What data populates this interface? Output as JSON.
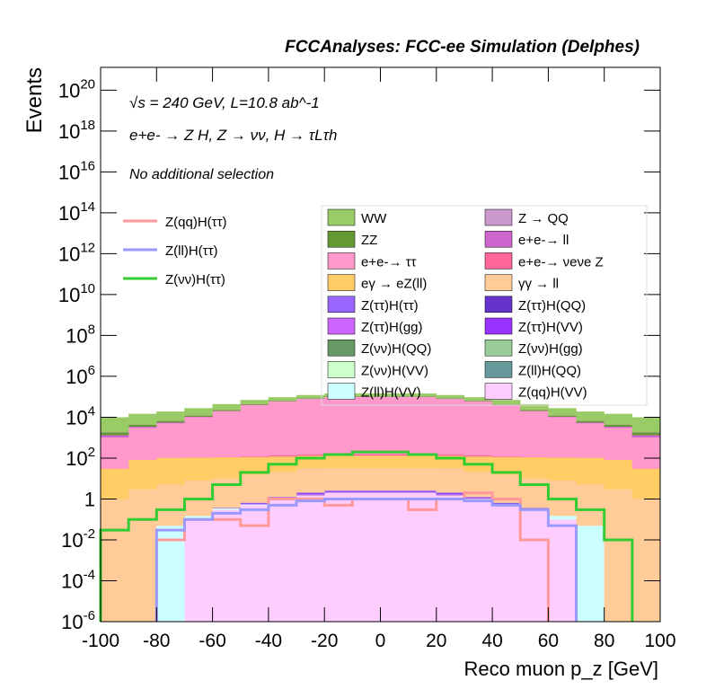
{
  "chart_data": {
    "type": "stacked_histogram",
    "title": "FCCAnalyses: FCC-ee Simulation (Delphes)",
    "ylabel": "Events",
    "xlabel": "Reco muon p_z [GeV]",
    "annotations": [
      "√s = 240 GeV, L=10.8 ab^-1",
      "e+e- → Z H, Z → νν, H → τLτh",
      "No additional selection"
    ],
    "log_y": true,
    "bins": [
      -100,
      -90,
      -80,
      -70,
      -60,
      -50,
      -40,
      -30,
      -20,
      -10,
      0,
      10,
      20,
      30,
      40,
      50,
      60,
      70,
      80,
      90,
      100
    ],
    "xlim": [
      -100,
      100
    ],
    "xticks": [
      -100,
      -80,
      -60,
      -40,
      -20,
      0,
      20,
      40,
      60,
      80,
      100
    ],
    "ylim": [
      1e-06,
      1.3e+21
    ],
    "yticks": [
      {
        "value": 1e-06,
        "label": "10^-6"
      },
      {
        "value": 0.0001,
        "label": "10^-4"
      },
      {
        "value": 0.01,
        "label": "10^-2"
      },
      1,
      {
        "value": 100,
        "label": "10^2"
      },
      {
        "value": 10000.0,
        "label": "10^4"
      },
      {
        "value": 1000000.0,
        "label": "10^6"
      },
      {
        "value": 100000000.0,
        "label": "10^8"
      },
      {
        "value": 10000000000.0,
        "label": "10^10"
      },
      {
        "value": 1000000000000.0,
        "label": "10^12"
      },
      {
        "value": 100000000000000.0,
        "label": "10^14"
      },
      {
        "value": 1e+16,
        "label": "10^16"
      },
      {
        "value": 1e+18,
        "label": "10^18"
      },
      {
        "value": 1e+20,
        "label": "10^20"
      }
    ],
    "series": [
      {
        "name": "WW",
        "color": "#99cc66",
        "values": [
          8000,
          10000,
          12000,
          15000,
          20000,
          25000,
          30000,
          35000,
          40000,
          40000,
          40000,
          40000,
          35000,
          30000,
          25000,
          20000,
          15000,
          12000,
          10000,
          8000
        ]
      },
      {
        "name": "Z → QQ",
        "color": "#cc99cc",
        "values": [
          50,
          100,
          200,
          300,
          400,
          500,
          500,
          600,
          600,
          600,
          600,
          600,
          600,
          500,
          500,
          400,
          300,
          200,
          100,
          50
        ]
      },
      {
        "name": "ZZ",
        "color": "#669933",
        "values": [
          500,
          800,
          1000,
          1500,
          2000,
          2500,
          3000,
          3000,
          3000,
          3000,
          3000,
          3000,
          3000,
          3000,
          2500,
          2000,
          1500,
          1000,
          800,
          500
        ]
      },
      {
        "name": "e+e-→ ll",
        "color": "#cc66cc",
        "values": [
          300,
          400,
          500,
          500,
          600,
          600,
          700,
          700,
          700,
          700,
          700,
          700,
          700,
          700,
          600,
          600,
          500,
          500,
          400,
          300
        ]
      },
      {
        "name": "e+e-→ ττ",
        "color": "#ff99cc",
        "values": [
          1000,
          3000,
          5000,
          10000,
          20000,
          40000,
          60000,
          80000,
          100000,
          100000,
          100000,
          100000,
          80000,
          60000,
          40000,
          20000,
          10000,
          5000,
          3000,
          1000
        ]
      },
      {
        "name": "e+e-→ νeνe Z",
        "color": "#ff6699",
        "values": [
          0.01,
          0.05,
          0.3,
          1,
          3,
          8,
          15,
          20,
          25,
          25,
          25,
          25,
          20,
          15,
          8,
          3,
          1,
          0.3,
          0.05,
          0.01
        ]
      },
      {
        "name": "eγ → eZ(ll)",
        "color": "#ffcc66",
        "values": [
          30,
          80,
          100,
          100,
          100,
          100,
          100,
          100,
          100,
          100,
          100,
          100,
          100,
          100,
          100,
          100,
          100,
          100,
          80,
          30
        ]
      },
      {
        "name": "γγ → ll",
        "color": "#ffcc99",
        "values": [
          1,
          3,
          5,
          8,
          10,
          15,
          20,
          30,
          30,
          30,
          30,
          30,
          30,
          20,
          15,
          10,
          8,
          5,
          3,
          1
        ]
      },
      {
        "name": "Z(ττ)H(ττ)",
        "color": "#9966ff",
        "values": [
          0,
          0,
          0,
          0,
          0.01,
          0.05,
          0.1,
          0.2,
          0.2,
          0.2,
          0.2,
          0.2,
          0.2,
          0.1,
          0.05,
          0.01,
          0,
          0,
          0,
          0
        ]
      },
      {
        "name": "Z(ττ)H(QQ)",
        "color": "#6633cc",
        "values": [
          0,
          0,
          0,
          0,
          0.01,
          0.03,
          0.05,
          0.1,
          0.1,
          0.1,
          0.1,
          0.1,
          0.1,
          0.05,
          0.03,
          0.01,
          0,
          0,
          0,
          0
        ]
      },
      {
        "name": "Z(ττ)H(gg)",
        "color": "#cc66ff",
        "values": [
          0,
          0,
          0,
          0,
          0,
          0.02,
          0.05,
          0.2,
          0.2,
          0.2,
          0.2,
          0.2,
          0.2,
          0.05,
          0.02,
          0,
          0,
          0,
          0,
          0
        ]
      },
      {
        "name": "Z(ττ)H(VV)",
        "color": "#9933ff",
        "values": [
          0,
          0,
          0,
          0,
          0,
          0.01,
          0.02,
          0.05,
          0.05,
          0.05,
          0.05,
          0.05,
          0.05,
          0.02,
          0.01,
          0,
          0,
          0,
          0,
          0
        ]
      },
      {
        "name": "Z(νν)H(QQ)",
        "color": "#669966",
        "values": [
          0,
          0,
          0,
          0,
          0,
          0,
          0.001,
          0.002,
          0.002,
          0.002,
          0.002,
          0.002,
          0.002,
          0.001,
          0,
          0,
          0,
          0,
          0,
          0
        ]
      },
      {
        "name": "Z(νν)H(gg)",
        "color": "#99cc99",
        "values": [
          0,
          0,
          0,
          0,
          0,
          0,
          0.001,
          0.002,
          0.002,
          0.002,
          0.002,
          0.002,
          0.002,
          0.001,
          0,
          0,
          0,
          0,
          0,
          0
        ]
      },
      {
        "name": "Z(νν)H(VV)",
        "color": "#ccffcc",
        "values": [
          0,
          0,
          0,
          0,
          0,
          0,
          0,
          0.001,
          0.001,
          0.001,
          0.001,
          0.001,
          0.001,
          0,
          0,
          0,
          0,
          0,
          0,
          0
        ]
      },
      {
        "name": "Z(ll)H(QQ)",
        "color": "#669999",
        "values": [
          0,
          0,
          0,
          0,
          0,
          0,
          0,
          0,
          0.01,
          0.01,
          0.01,
          0.01,
          0,
          0,
          0,
          0,
          0,
          0,
          0,
          0
        ]
      },
      {
        "name": "Z(ll)H(VV)",
        "color": "#ccffff",
        "values": [
          0,
          0,
          0.05,
          0.05,
          0.05,
          0.05,
          0.05,
          0.05,
          0.05,
          0.05,
          0.05,
          0.05,
          0.05,
          0.05,
          0.05,
          0.05,
          0.05,
          0.05,
          0,
          0
        ]
      },
      {
        "name": "Z(qq)H(VV)",
        "color": "#ffccff",
        "values": [
          0,
          0,
          0,
          0.1,
          0.3,
          0.5,
          1,
          1.5,
          2,
          2,
          2,
          2,
          1.5,
          1,
          0.5,
          0.3,
          0.1,
          0,
          0,
          0
        ]
      }
    ],
    "lines": [
      {
        "name": "Z(qq)H(ττ)",
        "color": "#ff9999",
        "values": [
          null,
          null,
          0.01,
          0.1,
          0.1,
          0.05,
          1,
          1,
          0.5,
          1,
          1,
          0.3,
          1,
          2,
          1,
          0.01,
          null,
          null,
          null,
          null
        ]
      },
      {
        "name": "Z(ll)H(ττ)",
        "color": "#9999ff",
        "values": [
          null,
          null,
          0.03,
          0.1,
          0.2,
          0.3,
          0.5,
          0.8,
          1,
          1,
          1,
          1,
          1,
          0.8,
          0.5,
          0.3,
          0.05,
          null,
          null,
          null
        ]
      },
      {
        "name": "Z(νν)H(ττ)",
        "color": "#33cc33",
        "values": [
          0.03,
          0.1,
          0.3,
          1,
          5,
          20,
          50,
          100,
          150,
          200,
          200,
          150,
          100,
          50,
          20,
          5,
          1,
          0.3,
          0.01,
          null
        ]
      }
    ]
  }
}
